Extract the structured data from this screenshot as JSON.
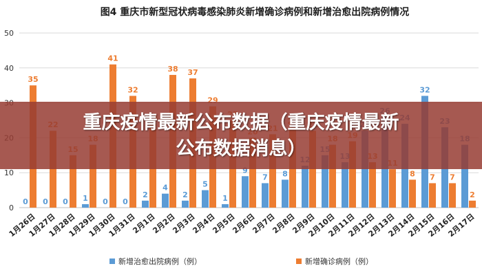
{
  "chart_data": {
    "type": "bar",
    "title": "图4    重庆市新型冠状病毒感染肺炎新增确诊病例和新增治愈出院病例情况",
    "categories": [
      "1月26日",
      "1月27日",
      "1月28日",
      "1月29日",
      "1月30日",
      "1月31日",
      "2月1日",
      "2月2日",
      "2月3日",
      "2月4日",
      "2月5日",
      "2月6日",
      "2月7日",
      "2月8日",
      "2月9日",
      "2月10日",
      "2月11日",
      "2月12日",
      "2月13日",
      "2月14日",
      "2月15日",
      "2月16日",
      "2月17日"
    ],
    "ylim": [
      0,
      50
    ],
    "yticks": [
      0,
      10,
      20,
      30,
      40,
      50
    ],
    "grid": true,
    "legend_position": "bottom",
    "series": [
      {
        "name": "新增治愈出院病例（例）",
        "color": "#5b9bd5",
        "values": [
          0,
          0,
          0,
          1,
          0,
          0,
          2,
          4,
          2,
          5,
          1,
          9,
          7,
          8,
          12,
          15,
          13,
          22,
          26,
          24,
          32,
          23,
          18
        ]
      },
      {
        "name": "新增确诊病例（例）",
        "color": "#ed7d31",
        "values": [
          35,
          22,
          15,
          18,
          41,
          32,
          24,
          38,
          37,
          29,
          25,
          20,
          21,
          23,
          22,
          18,
          19,
          13,
          11,
          8,
          7,
          7,
          2
        ]
      }
    ]
  },
  "overlay": {
    "line1": "重庆疫情最新公布数据（重庆疫情最新",
    "line2": "公布数据消息）"
  }
}
